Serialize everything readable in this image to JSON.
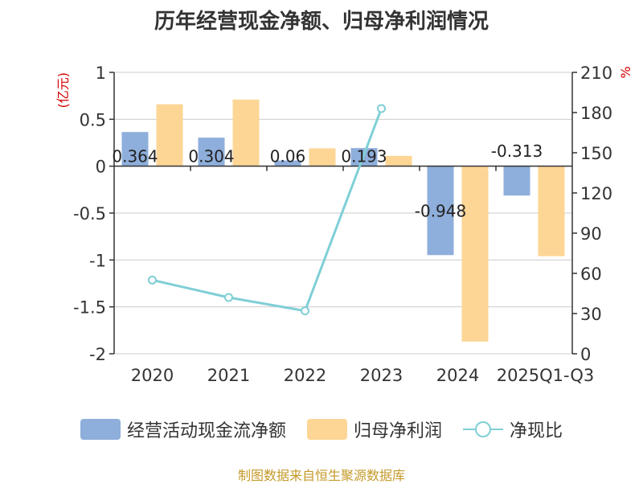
{
  "title": "历年经营现金净额、归母净利润情况",
  "source": "制图数据来自恒生聚源数据库",
  "colors": {
    "cashflow": "#8eaedb",
    "profit": "#fdd696",
    "ratio": "#7fcfd6"
  },
  "chart_data": {
    "type": "bar",
    "categories": [
      "2020",
      "2021",
      "2022",
      "2023",
      "2024",
      "2025Q1-Q3"
    ],
    "series": [
      {
        "name": "经营活动现金流净额",
        "kind": "bar",
        "axis": "left",
        "values": [
          0.364,
          0.304,
          0.06,
          0.193,
          -0.948,
          -0.313
        ],
        "labels": [
          "0.364",
          "0.304",
          "0.06",
          "0.193",
          "-0.948",
          "-0.313"
        ]
      },
      {
        "name": "归母净利润",
        "kind": "bar",
        "axis": "left",
        "values": [
          0.66,
          0.71,
          0.19,
          0.11,
          -1.87,
          -0.96
        ]
      },
      {
        "name": "净现比",
        "kind": "line",
        "axis": "right",
        "values": [
          55,
          42,
          32,
          183,
          null,
          null
        ]
      }
    ],
    "y_left": {
      "label": "(亿元)",
      "lim": [
        -2,
        1
      ],
      "ticks": [
        "1",
        "0.5",
        "0",
        "-0.5",
        "-1",
        "-1.5",
        "-2"
      ],
      "tick_values": [
        1,
        0.5,
        0,
        -0.5,
        -1,
        -1.5,
        -2
      ]
    },
    "y_right": {
      "label": "%",
      "lim": [
        0,
        210
      ],
      "ticks": [
        "210",
        "180",
        "150",
        "120",
        "90",
        "60",
        "30",
        "0"
      ],
      "tick_values": [
        210,
        180,
        150,
        120,
        90,
        60,
        30,
        0
      ]
    },
    "grid": true,
    "legend_position": "bottom"
  }
}
